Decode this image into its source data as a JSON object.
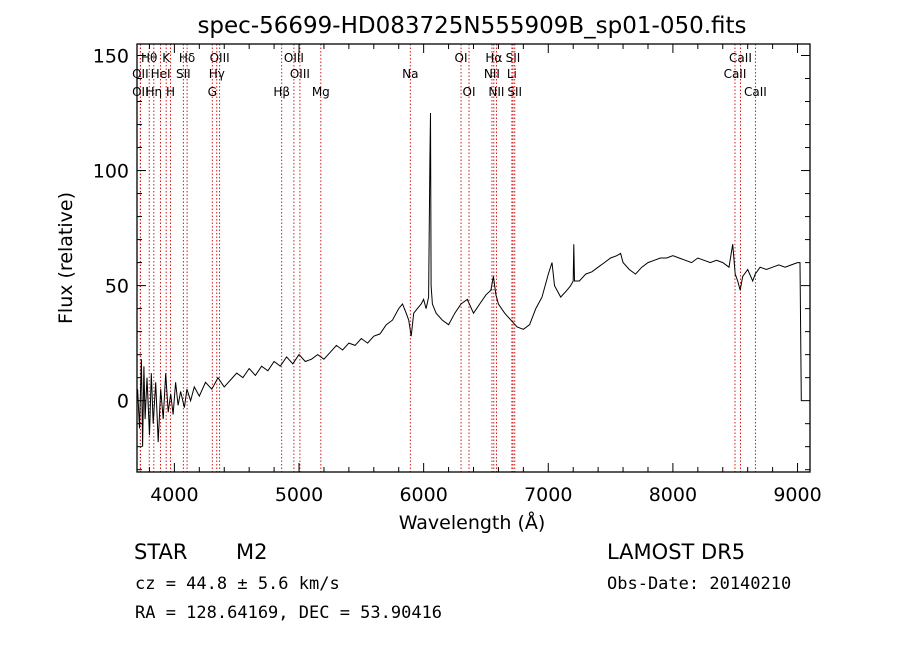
{
  "chart_data": {
    "type": "line",
    "title": "spec-56699-HD083725N555909B_sp01-050.fits",
    "xlabel": "Wavelength (Å)",
    "ylabel": "Flux (relative)",
    "xlim": [
      3700,
      9100
    ],
    "ylim": [
      -31,
      155
    ],
    "xticks": [
      4000,
      5000,
      6000,
      7000,
      8000,
      9000
    ],
    "yticks": [
      0,
      50,
      100,
      150
    ],
    "grid": false,
    "colors": {
      "spectrum": "#000000",
      "lines": "#cc0000"
    },
    "series": [
      {
        "values": [
          [
            3705,
            5
          ],
          [
            3720,
            -12
          ],
          [
            3735,
            18
          ],
          [
            3745,
            -20
          ],
          [
            3755,
            15
          ],
          [
            3765,
            -8
          ],
          [
            3780,
            10
          ],
          [
            3800,
            -15
          ],
          [
            3815,
            12
          ],
          [
            3830,
            -10
          ],
          [
            3850,
            8
          ],
          [
            3870,
            -18
          ],
          [
            3890,
            5
          ],
          [
            3910,
            -8
          ],
          [
            3930,
            12
          ],
          [
            3950,
            -5
          ],
          [
            3970,
            3
          ],
          [
            3990,
            -6
          ],
          [
            4010,
            8
          ],
          [
            4030,
            -2
          ],
          [
            4050,
            4
          ],
          [
            4080,
            -3
          ],
          [
            4100,
            5
          ],
          [
            4130,
            0
          ],
          [
            4160,
            6
          ],
          [
            4200,
            2
          ],
          [
            4250,
            8
          ],
          [
            4300,
            5
          ],
          [
            4350,
            10
          ],
          [
            4400,
            6
          ],
          [
            4450,
            9
          ],
          [
            4500,
            12
          ],
          [
            4550,
            10
          ],
          [
            4600,
            14
          ],
          [
            4650,
            11
          ],
          [
            4700,
            15
          ],
          [
            4750,
            13
          ],
          [
            4800,
            17
          ],
          [
            4850,
            15
          ],
          [
            4900,
            19
          ],
          [
            4950,
            16
          ],
          [
            5000,
            20
          ],
          [
            5050,
            17
          ],
          [
            5100,
            18
          ],
          [
            5150,
            20
          ],
          [
            5200,
            18
          ],
          [
            5250,
            21
          ],
          [
            5300,
            24
          ],
          [
            5350,
            22
          ],
          [
            5400,
            25
          ],
          [
            5450,
            24
          ],
          [
            5500,
            27
          ],
          [
            5550,
            25
          ],
          [
            5600,
            28
          ],
          [
            5650,
            29
          ],
          [
            5700,
            33
          ],
          [
            5750,
            35
          ],
          [
            5800,
            40
          ],
          [
            5830,
            42
          ],
          [
            5860,
            38
          ],
          [
            5880,
            35
          ],
          [
            5900,
            28
          ],
          [
            5920,
            38
          ],
          [
            5950,
            40
          ],
          [
            5980,
            42
          ],
          [
            6000,
            44
          ],
          [
            6020,
            40
          ],
          [
            6040,
            45
          ],
          [
            6050,
            105
          ],
          [
            6055,
            125
          ],
          [
            6060,
            50
          ],
          [
            6070,
            42
          ],
          [
            6100,
            38
          ],
          [
            6150,
            35
          ],
          [
            6200,
            33
          ],
          [
            6250,
            38
          ],
          [
            6300,
            42
          ],
          [
            6350,
            44
          ],
          [
            6400,
            38
          ],
          [
            6450,
            42
          ],
          [
            6500,
            46
          ],
          [
            6540,
            48
          ],
          [
            6560,
            54
          ],
          [
            6580,
            46
          ],
          [
            6600,
            42
          ],
          [
            6650,
            38
          ],
          [
            6700,
            35
          ],
          [
            6750,
            32
          ],
          [
            6800,
            31
          ],
          [
            6850,
            33
          ],
          [
            6900,
            40
          ],
          [
            6950,
            45
          ],
          [
            7000,
            55
          ],
          [
            7030,
            60
          ],
          [
            7050,
            50
          ],
          [
            7100,
            45
          ],
          [
            7150,
            48
          ],
          [
            7180,
            50
          ],
          [
            7200,
            52
          ],
          [
            7205,
            68
          ],
          [
            7210,
            52
          ],
          [
            7250,
            52
          ],
          [
            7300,
            55
          ],
          [
            7350,
            56
          ],
          [
            7400,
            58
          ],
          [
            7450,
            60
          ],
          [
            7500,
            62
          ],
          [
            7550,
            63
          ],
          [
            7580,
            64
          ],
          [
            7600,
            60
          ],
          [
            7650,
            57
          ],
          [
            7700,
            55
          ],
          [
            7750,
            58
          ],
          [
            7800,
            60
          ],
          [
            7850,
            61
          ],
          [
            7900,
            62
          ],
          [
            7950,
            62
          ],
          [
            8000,
            63
          ],
          [
            8050,
            62
          ],
          [
            8100,
            61
          ],
          [
            8150,
            60
          ],
          [
            8200,
            62
          ],
          [
            8250,
            61
          ],
          [
            8300,
            60
          ],
          [
            8350,
            61
          ],
          [
            8400,
            60
          ],
          [
            8450,
            58
          ],
          [
            8480,
            68
          ],
          [
            8500,
            55
          ],
          [
            8520,
            52
          ],
          [
            8540,
            48
          ],
          [
            8560,
            54
          ],
          [
            8600,
            57
          ],
          [
            8640,
            52
          ],
          [
            8660,
            55
          ],
          [
            8700,
            58
          ],
          [
            8750,
            57
          ],
          [
            8800,
            58
          ],
          [
            8850,
            59
          ],
          [
            8900,
            58
          ],
          [
            8950,
            59
          ],
          [
            9000,
            60
          ],
          [
            9020,
            60
          ],
          [
            9030,
            0
          ]
        ]
      }
    ],
    "spectral_lines": [
      {
        "name": "Hθ",
        "wl": 3798,
        "row": 1
      },
      {
        "name": "OII",
        "wl": 3727,
        "row": 2
      },
      {
        "name": "OII",
        "wl": 3727,
        "row": 3
      },
      {
        "name": "K",
        "wl": 3934,
        "row": 1
      },
      {
        "name": "HeI",
        "wl": 3889,
        "row": 2
      },
      {
        "name": "Hη",
        "wl": 3835,
        "row": 3
      },
      {
        "name": "H",
        "wl": 3969,
        "row": 3
      },
      {
        "name": "Hδ",
        "wl": 4102,
        "row": 1
      },
      {
        "name": "SII",
        "wl": 4072,
        "row": 2
      },
      {
        "name": "OIII",
        "wl": 4363,
        "row": 1
      },
      {
        "name": "Hγ",
        "wl": 4340,
        "row": 2
      },
      {
        "name": "G",
        "wl": 4304,
        "row": 3
      },
      {
        "name": "OIII",
        "wl": 4959,
        "row": 1
      },
      {
        "name": "OIII",
        "wl": 5007,
        "row": 2
      },
      {
        "name": "Hβ",
        "wl": 4861,
        "row": 3
      },
      {
        "name": "Mg",
        "wl": 5175,
        "row": 3
      },
      {
        "name": "Na",
        "wl": 5893,
        "row": 2
      },
      {
        "name": "OI",
        "wl": 6300,
        "row": 1
      },
      {
        "name": "OI",
        "wl": 6364,
        "row": 3
      },
      {
        "name": "Hα",
        "wl": 6563,
        "row": 1
      },
      {
        "name": "NII",
        "wl": 6548,
        "row": 2
      },
      {
        "name": "NII",
        "wl": 6584,
        "row": 3
      },
      {
        "name": "SII",
        "wl": 6717,
        "row": 1
      },
      {
        "name": "Li",
        "wl": 6708,
        "row": 2
      },
      {
        "name": "SII",
        "wl": 6731,
        "row": 3
      },
      {
        "name": "CaII",
        "wl": 8542,
        "row": 1
      },
      {
        "name": "CaII",
        "wl": 8498,
        "row": 2
      },
      {
        "name": "CaII",
        "wl": 8662,
        "row": 3
      }
    ]
  },
  "info": {
    "object_class": "STAR",
    "subclass": "M2",
    "survey": "LAMOST  DR5",
    "redshift": "cz = 44.8 ± 5.6 km/s",
    "obs_date": "Obs-Date: 20140210",
    "coords": "RA = 128.64169, DEC =  53.90416"
  }
}
